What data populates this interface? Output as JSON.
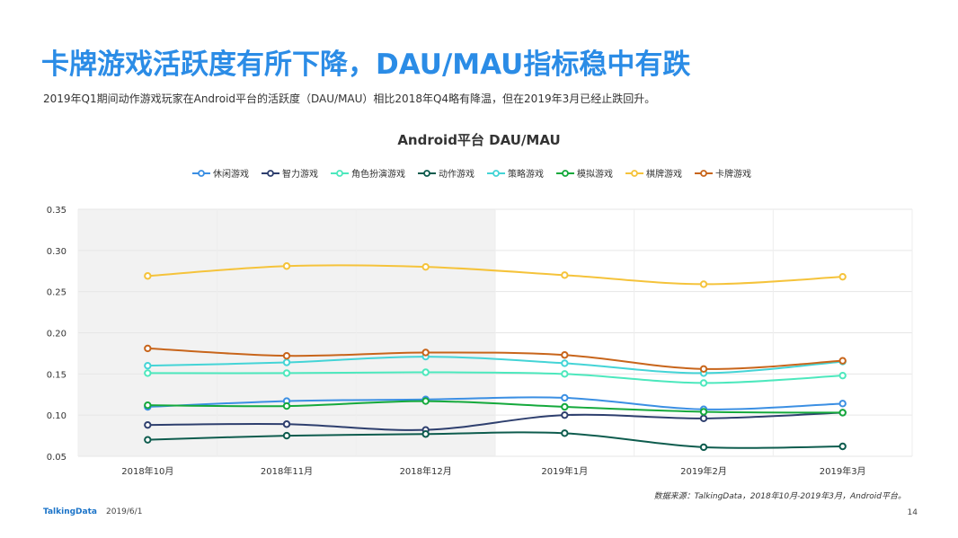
{
  "slide": {
    "title": "卡牌游戏活跃度有所下降，DAU/MAU指标稳中有跌",
    "subtitle": "2019年Q1期间动作游戏玩家在Android平台的活跃度（DAU/MAU）相比2018年Q4略有降温，但在2019年3月已经止跌回升。",
    "source": "数据来源：TalkingData，2018年10月-2019年3月，Android平台。",
    "brand": "TalkingData",
    "date": "2019/6/1",
    "page_number": "14"
  },
  "chart_data": {
    "type": "line",
    "title": "Android平台  DAU/MAU",
    "categories": [
      "2018年10月",
      "2018年11月",
      "2018年12月",
      "2019年1月",
      "2019年2月",
      "2019年3月"
    ],
    "ylim": [
      0.05,
      0.35
    ],
    "yticks": [
      "0.35",
      "0.30",
      "0.25",
      "0.20",
      "0.15",
      "0.10",
      "0.05"
    ],
    "yticks_values": [
      0.35,
      0.3,
      0.25,
      0.2,
      0.15,
      0.1,
      0.05
    ],
    "grid": true,
    "shaded_categories": [
      "2018年10月",
      "2018年11月",
      "2018年12月"
    ],
    "legend_position": "top",
    "series": [
      {
        "name": "休闲游戏",
        "color": "#3b8fe3",
        "values": [
          0.11,
          0.117,
          0.119,
          0.121,
          0.107,
          0.114
        ]
      },
      {
        "name": "智力游戏",
        "color": "#2e3f6e",
        "values": [
          0.088,
          0.089,
          0.082,
          0.1,
          0.096,
          0.103
        ]
      },
      {
        "name": "角色扮演游戏",
        "color": "#4de8bd",
        "values": [
          0.151,
          0.151,
          0.152,
          0.15,
          0.139,
          0.148
        ]
      },
      {
        "name": "动作游戏",
        "color": "#0e5c4e",
        "values": [
          0.07,
          0.075,
          0.077,
          0.078,
          0.061,
          0.062
        ]
      },
      {
        "name": "策略游戏",
        "color": "#44d4d6",
        "values": [
          0.16,
          0.164,
          0.171,
          0.163,
          0.151,
          0.165
        ]
      },
      {
        "name": "模拟游戏",
        "color": "#15a93c",
        "values": [
          0.112,
          0.111,
          0.117,
          0.11,
          0.104,
          0.103
        ]
      },
      {
        "name": "棋牌游戏",
        "color": "#f5c33b",
        "values": [
          0.269,
          0.281,
          0.28,
          0.27,
          0.259,
          0.268
        ]
      },
      {
        "name": "卡牌游戏",
        "color": "#c8651b",
        "values": [
          0.181,
          0.172,
          0.176,
          0.173,
          0.156,
          0.166
        ]
      }
    ]
  }
}
